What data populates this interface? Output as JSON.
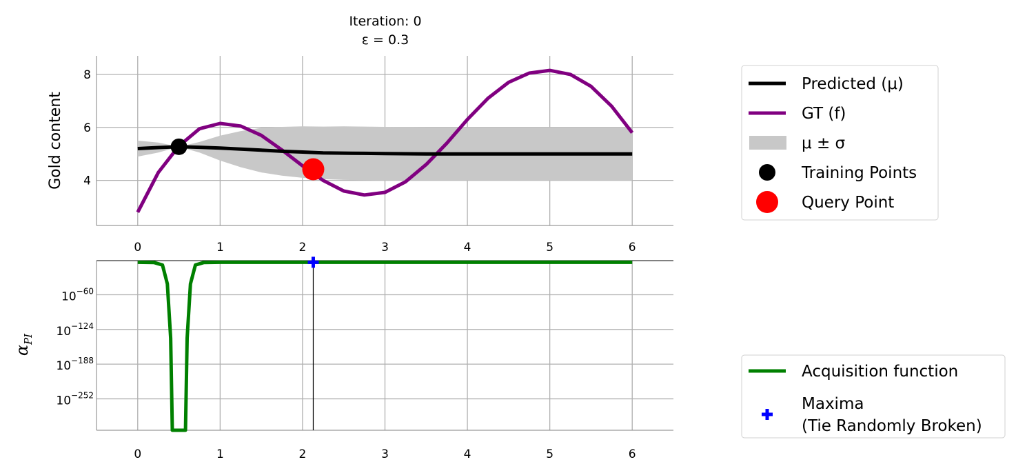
{
  "chart_data": [
    {
      "type": "line",
      "title": "Iteration: 0",
      "subtitle": "ε = 0.3",
      "ylabel": "Gold content",
      "xlabel": "",
      "xlim": [
        -0.5,
        6.5
      ],
      "ylim": [
        2.3,
        8.7
      ],
      "xticks": [
        "0",
        "1",
        "2",
        "3",
        "4",
        "5",
        "6"
      ],
      "yticks": [
        "4",
        "6",
        "8"
      ],
      "grid": true,
      "legend_position": "right",
      "series": [
        {
          "name": "Predicted (μ)",
          "color": "#000000",
          "x": [
            0,
            0.25,
            0.5,
            0.75,
            1,
            1.25,
            1.5,
            1.75,
            2,
            2.25,
            2.5,
            2.75,
            3,
            3.5,
            4,
            4.5,
            5,
            5.5,
            6
          ],
          "y": [
            5.2,
            5.24,
            5.27,
            5.25,
            5.22,
            5.18,
            5.14,
            5.1,
            5.07,
            5.04,
            5.03,
            5.02,
            5.01,
            5.0,
            5.0,
            5.0,
            5.0,
            5.0,
            5.0
          ]
        },
        {
          "name": "GT (f)",
          "color": "#800080",
          "x": [
            0,
            0.25,
            0.5,
            0.75,
            1,
            1.25,
            1.5,
            1.75,
            2,
            2.25,
            2.5,
            2.75,
            3,
            3.25,
            3.5,
            3.75,
            4,
            4.25,
            4.5,
            4.75,
            5,
            5.25,
            5.5,
            5.75,
            6
          ],
          "y": [
            2.8,
            4.3,
            5.3,
            5.95,
            6.15,
            6.05,
            5.7,
            5.15,
            4.55,
            4.0,
            3.6,
            3.45,
            3.55,
            3.95,
            4.6,
            5.4,
            6.3,
            7.1,
            7.7,
            8.05,
            8.15,
            8.0,
            7.55,
            6.8,
            5.8
          ]
        },
        {
          "name": "μ ± σ",
          "color": "#c8c8c8",
          "x": [
            0,
            0.25,
            0.5,
            0.75,
            1,
            1.25,
            1.5,
            1.75,
            2,
            2.25,
            2.5,
            2.75,
            3,
            3.5,
            4,
            4.5,
            5,
            5.5,
            6
          ],
          "lower": [
            4.9,
            5.05,
            5.27,
            5.05,
            4.75,
            4.5,
            4.3,
            4.18,
            4.1,
            4.05,
            4.02,
            4.01,
            4.0,
            4.0,
            4.0,
            4.0,
            4.0,
            4.0,
            4.0
          ],
          "upper": [
            5.5,
            5.43,
            5.27,
            5.45,
            5.69,
            5.86,
            5.98,
            6.02,
            6.04,
            6.03,
            6.04,
            6.03,
            6.02,
            6.0,
            6.0,
            6.0,
            6.0,
            6.0,
            6.0
          ]
        }
      ],
      "training_points": {
        "name": "Training Points",
        "color": "#000000",
        "x": [
          0.5
        ],
        "y": [
          5.27
        ]
      },
      "query_point": {
        "name": "Query Point",
        "color": "#ff0000",
        "x": [
          2.13
        ],
        "y": [
          4.42
        ]
      }
    },
    {
      "type": "line",
      "ylabel": "α_PI",
      "xlim": [
        -0.5,
        6.5
      ],
      "yscale": "log",
      "ylim_exponent": [
        -310,
        3
      ],
      "xticks": [
        "0",
        "1",
        "2",
        "3",
        "4",
        "5",
        "6"
      ],
      "yticks": [
        {
          "base": "10",
          "exp": "−60",
          "value": -60
        },
        {
          "base": "10",
          "exp": "−124",
          "value": -124
        },
        {
          "base": "10",
          "exp": "−188",
          "value": -188
        },
        {
          "base": "10",
          "exp": "−252",
          "value": -252
        }
      ],
      "grid": true,
      "legend_position": "bottom-right",
      "series": [
        {
          "name": "Acquisition function",
          "color": "#008000",
          "x": [
            0,
            0.2,
            0.3,
            0.36,
            0.4,
            0.42,
            0.44,
            0.5,
            0.56,
            0.58,
            0.6,
            0.64,
            0.7,
            0.8,
            1,
            2,
            3,
            4,
            5,
            6
          ],
          "log10_y": [
            0,
            -0.5,
            -5,
            -40,
            -140,
            -310,
            -310,
            -310,
            -310,
            -310,
            -140,
            -40,
            -5,
            -0.5,
            0,
            0,
            0,
            0,
            0,
            0
          ]
        }
      ],
      "maxima": {
        "name": "Maxima\n(Tie Randomly Broken)",
        "color": "#0000ff",
        "x": 2.13,
        "log10_y": 0
      }
    }
  ],
  "legend_top": {
    "items": [
      {
        "label": "Predicted (μ)",
        "kind": "line",
        "color": "#000000"
      },
      {
        "label": "GT (f)",
        "kind": "line",
        "color": "#800080"
      },
      {
        "label": "μ ± σ",
        "kind": "patch",
        "color": "#c8c8c8"
      },
      {
        "label": "Training Points",
        "kind": "dot",
        "color": "#000000"
      },
      {
        "label": "Query Point",
        "kind": "bigdot",
        "color": "#ff0000"
      }
    ]
  },
  "legend_bottom": {
    "items": [
      {
        "label": "Acquisition function",
        "kind": "line",
        "color": "#008000"
      },
      {
        "label": "Maxima",
        "label2": "(Tie Randomly Broken)",
        "kind": "plus",
        "color": "#0000ff"
      }
    ]
  }
}
